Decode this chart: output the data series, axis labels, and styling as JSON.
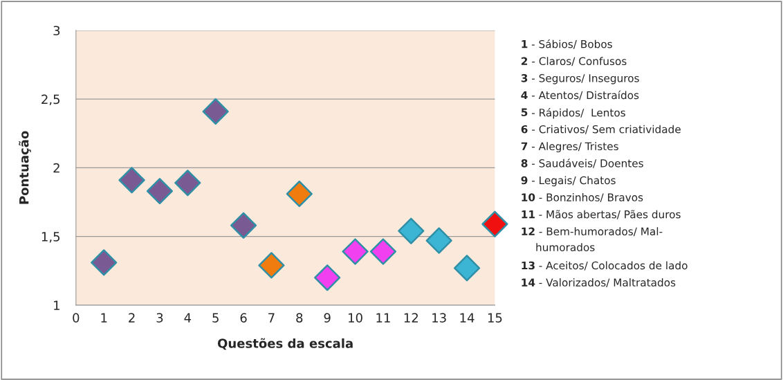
{
  "chart_data": {
    "type": "scatter",
    "xlabel": "Questões da escala",
    "ylabel": "Pontuação",
    "x": [
      1,
      2,
      3,
      4,
      5,
      6,
      7,
      8,
      9,
      10,
      11,
      12,
      13,
      14,
      15
    ],
    "values": [
      1.31,
      1.91,
      1.83,
      1.89,
      2.41,
      1.58,
      1.29,
      1.81,
      1.2,
      1.39,
      1.39,
      1.54,
      1.47,
      1.27,
      1.59
    ],
    "colors": [
      "#7a5a92",
      "#7a5a92",
      "#7a5a92",
      "#7a5a92",
      "#7a5a92",
      "#7a5a92",
      "#f07c10",
      "#f07c10",
      "#f040f0",
      "#f040f0",
      "#f040f0",
      "#3cb4d4",
      "#3cb4d4",
      "#3cb4d4",
      "#f01010"
    ],
    "xlim": [
      0,
      15
    ],
    "xticks": [
      0,
      1,
      2,
      3,
      4,
      5,
      6,
      7,
      8,
      9,
      10,
      11,
      12,
      13,
      14,
      15
    ],
    "ylim": [
      1,
      3
    ],
    "yticks": [
      1,
      {
        "value": 1.5,
        "label": "1,5"
      },
      2,
      {
        "value": 2.5,
        "label": "2,5"
      },
      3
    ],
    "grid": "y",
    "marker": "diamond",
    "annotations": [
      "1 - Sábios/ Bobos",
      "2 - Claros/ Confusos",
      "3 - Seguros/ Inseguros",
      "4 - Atentos/ Distraídos",
      "5 - Rápidos/  Lentos",
      "6 - Criativos/ Sem criatividade",
      "7 - Alegres/ Tristes",
      "8 - Saudáveis/ Doentes",
      "9 - Legais/ Chatos",
      "10 - Bonzinhos/ Bravos",
      "11 - Mãos abertas/ Pães duros",
      "12 - Bem-humorados/ Mal-\nhumorados",
      "13 - Aceitos/ Colocados de lado",
      "14 - Valorizados/ Maltratados"
    ]
  }
}
